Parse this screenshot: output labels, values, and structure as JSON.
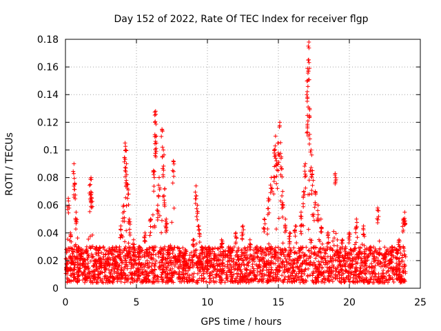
{
  "chart_data": {
    "type": "scatter",
    "title": "Day 152 of 2022, Rate Of TEC Index for receiver flgp",
    "xlabel": "GPS time / hours",
    "ylabel": "ROTI / TECUs",
    "xlim": [
      0,
      25
    ],
    "ylim": [
      0,
      0.18
    ],
    "xticks": [
      0,
      5,
      10,
      15,
      20,
      25
    ],
    "xtick_labels": [
      "0",
      "5",
      "10",
      "15",
      "20",
      "25"
    ],
    "yticks": [
      0,
      0.02,
      0.04,
      0.06,
      0.08,
      0.1,
      0.12,
      0.14,
      0.16,
      0.18
    ],
    "ytick_labels": [
      "0",
      "0.02",
      "0.04",
      "0.06",
      "0.08",
      "0.1",
      "0.12",
      "0.14",
      "0.16",
      "0.18"
    ],
    "grid": true,
    "marker": "+",
    "color": "#ff0000",
    "series": [
      {
        "name": "ROTI",
        "x": [
          0.05,
          0.2,
          0.35,
          0.5,
          0.6,
          0.65,
          0.75,
          0.9,
          1.1,
          1.3,
          1.5,
          1.75,
          1.8,
          1.85,
          2.1,
          2.5,
          3.0,
          3.5,
          3.9,
          4.1,
          4.2,
          4.25,
          4.3,
          4.4,
          4.5,
          4.8,
          5.2,
          5.6,
          6.0,
          6.2,
          6.3,
          6.35,
          6.4,
          6.5,
          6.6,
          6.8,
          6.9,
          7.0,
          7.1,
          7.3,
          7.6,
          8.0,
          8.5,
          9.0,
          9.2,
          9.3,
          9.4,
          9.6,
          10.0,
          10.5,
          11.0,
          11.5,
          12.0,
          12.5,
          13.0,
          13.5,
          14.0,
          14.3,
          14.5,
          14.7,
          14.8,
          14.9,
          15.0,
          15.1,
          15.2,
          15.3,
          15.5,
          15.8,
          16.2,
          16.6,
          16.8,
          16.9,
          17.0,
          17.05,
          17.1,
          17.15,
          17.2,
          17.3,
          17.4,
          17.6,
          17.8,
          18.0,
          18.5,
          19.0,
          19.5,
          20.0,
          20.5,
          21.0,
          21.5,
          22.0,
          22.5,
          23.0,
          23.5,
          23.8,
          23.9
        ],
        "y": [
          0.015,
          0.065,
          0.04,
          0.02,
          0.09,
          0.075,
          0.055,
          0.03,
          0.025,
          0.02,
          0.03,
          0.075,
          0.08,
          0.065,
          0.02,
          0.018,
          0.022,
          0.02,
          0.045,
          0.06,
          0.105,
          0.1,
          0.09,
          0.075,
          0.05,
          0.035,
          0.03,
          0.04,
          0.05,
          0.085,
          0.12,
          0.128,
          0.11,
          0.06,
          0.08,
          0.115,
          0.1,
          0.072,
          0.05,
          0.03,
          0.092,
          0.025,
          0.02,
          0.035,
          0.074,
          0.06,
          0.045,
          0.03,
          0.02,
          0.025,
          0.035,
          0.03,
          0.04,
          0.045,
          0.035,
          0.03,
          0.05,
          0.065,
          0.08,
          0.1,
          0.11,
          0.09,
          0.105,
          0.12,
          0.095,
          0.07,
          0.05,
          0.04,
          0.045,
          0.055,
          0.07,
          0.09,
          0.14,
          0.15,
          0.165,
          0.178,
          0.13,
          0.1,
          0.085,
          0.07,
          0.06,
          0.05,
          0.04,
          0.083,
          0.035,
          0.04,
          0.05,
          0.045,
          0.03,
          0.058,
          0.025,
          0.03,
          0.035,
          0.05,
          0.055
        ],
        "baseline_range": [
          0.004,
          0.03
        ]
      }
    ]
  }
}
